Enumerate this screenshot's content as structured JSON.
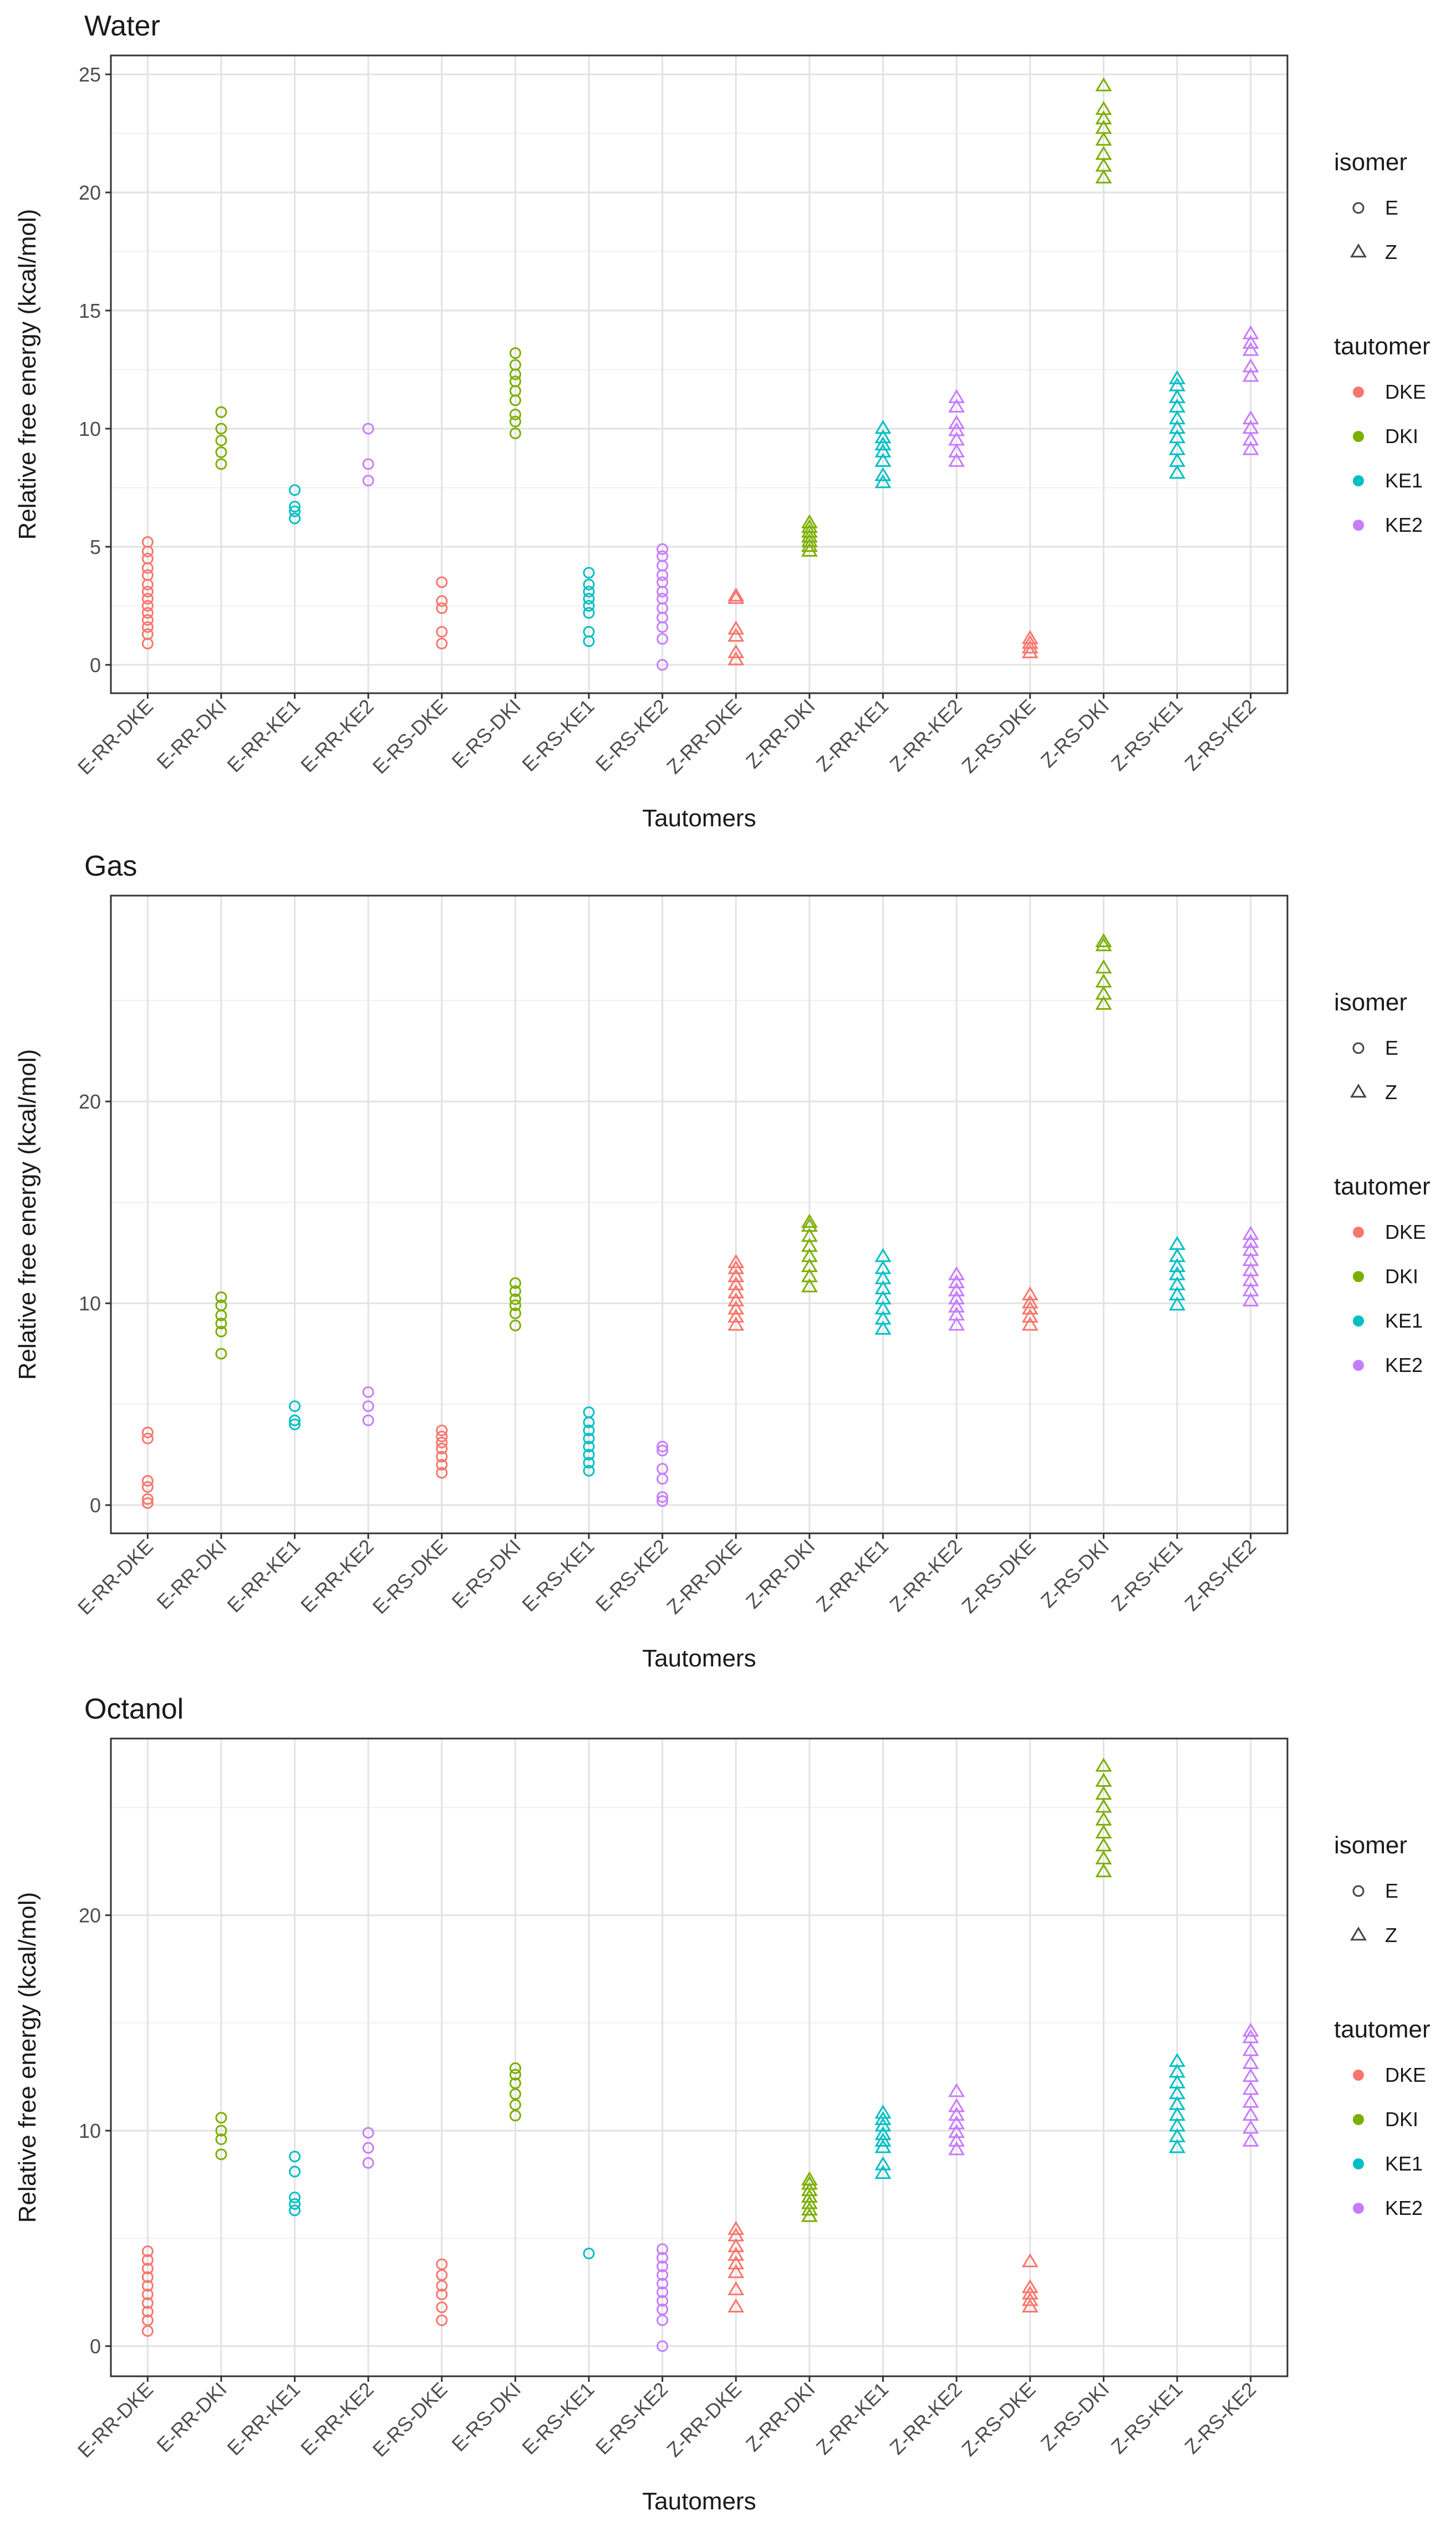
{
  "colors": {
    "isomer_E": "#444444",
    "isomer_Z": "#444444",
    "DKE": "#F8766D",
    "DKI": "#7CAE00",
    "KE1": "#00BFC4",
    "KE2": "#C77CFF"
  },
  "legend": {
    "isomer_title": "isomer",
    "isomer_items": [
      {
        "label": "E",
        "shape": "circle"
      },
      {
        "label": "Z",
        "shape": "triangle"
      }
    ],
    "tautomer_title": "tautomer",
    "tautomer_items": [
      {
        "label": "DKE",
        "color_key": "DKE"
      },
      {
        "label": "DKI",
        "color_key": "DKI"
      },
      {
        "label": "KE1",
        "color_key": "KE1"
      },
      {
        "label": "KE2",
        "color_key": "KE2"
      }
    ]
  },
  "chart_data": [
    {
      "type": "scatter",
      "title": "Water",
      "xlabel": "Tautomers",
      "ylabel": "Relative free energy (kcal/mol)",
      "ylim": [
        -1.2,
        25.8
      ],
      "yticks": [
        0,
        5,
        10,
        15,
        20,
        25
      ],
      "categories": [
        "E-RR-DKE",
        "E-RR-DKI",
        "E-RR-KE1",
        "E-RR-KE2",
        "E-RS-DKE",
        "E-RS-DKI",
        "E-RS-KE1",
        "E-RS-KE2",
        "Z-RR-DKE",
        "Z-RR-DKI",
        "Z-RR-KE1",
        "Z-RR-KE2",
        "Z-RS-DKE",
        "Z-RS-DKI",
        "Z-RS-KE1",
        "Z-RS-KE2"
      ],
      "series": [
        {
          "category": "E-RR-DKE",
          "isomer": "E",
          "tautomer": "DKE",
          "values": [
            0.9,
            1.3,
            1.6,
            1.9,
            2.2,
            2.5,
            2.8,
            3.1,
            3.4,
            3.8,
            4.1,
            4.5,
            4.8,
            5.2
          ]
        },
        {
          "category": "E-RR-DKI",
          "isomer": "E",
          "tautomer": "DKI",
          "values": [
            8.5,
            9.0,
            9.5,
            10.0,
            10.7
          ]
        },
        {
          "category": "E-RR-KE1",
          "isomer": "E",
          "tautomer": "KE1",
          "values": [
            6.2,
            6.5,
            6.7,
            7.4
          ]
        },
        {
          "category": "E-RR-KE2",
          "isomer": "E",
          "tautomer": "KE2",
          "values": [
            7.8,
            8.5,
            10.0
          ]
        },
        {
          "category": "E-RS-DKE",
          "isomer": "E",
          "tautomer": "DKE",
          "values": [
            0.9,
            1.4,
            2.4,
            2.7,
            3.5
          ]
        },
        {
          "category": "E-RS-DKI",
          "isomer": "E",
          "tautomer": "DKI",
          "values": [
            9.8,
            10.3,
            10.6,
            11.2,
            11.6,
            12.0,
            12.3,
            12.7,
            13.2
          ]
        },
        {
          "category": "E-RS-KE1",
          "isomer": "E",
          "tautomer": "KE1",
          "values": [
            1.0,
            1.4,
            2.2,
            2.5,
            2.8,
            3.1,
            3.4,
            3.9
          ]
        },
        {
          "category": "E-RS-KE2",
          "isomer": "E",
          "tautomer": "KE2",
          "values": [
            0.0,
            1.1,
            1.6,
            2.0,
            2.4,
            2.8,
            3.1,
            3.5,
            3.8,
            4.2,
            4.6,
            4.9
          ]
        },
        {
          "category": "Z-RR-DKE",
          "isomer": "Z",
          "tautomer": "DKE",
          "values": [
            0.2,
            0.5,
            1.2,
            1.5,
            2.8,
            2.9
          ]
        },
        {
          "category": "Z-RR-DKI",
          "isomer": "Z",
          "tautomer": "DKI",
          "values": [
            4.8,
            5.0,
            5.2,
            5.4,
            5.6,
            5.8,
            6.0
          ]
        },
        {
          "category": "Z-RR-KE1",
          "isomer": "Z",
          "tautomer": "KE1",
          "values": [
            7.7,
            8.0,
            8.6,
            9.0,
            9.3,
            9.6,
            10.0
          ]
        },
        {
          "category": "Z-RR-KE2",
          "isomer": "Z",
          "tautomer": "KE2",
          "values": [
            8.6,
            9.0,
            9.5,
            9.9,
            10.2,
            10.9,
            11.3
          ]
        },
        {
          "category": "Z-RS-DKE",
          "isomer": "Z",
          "tautomer": "DKE",
          "values": [
            0.5,
            0.7,
            0.9,
            1.1
          ]
        },
        {
          "category": "Z-RS-DKI",
          "isomer": "Z",
          "tautomer": "DKI",
          "values": [
            20.6,
            21.1,
            21.6,
            22.2,
            22.7,
            23.1,
            23.5,
            24.5
          ]
        },
        {
          "category": "Z-RS-KE1",
          "isomer": "Z",
          "tautomer": "KE1",
          "values": [
            8.1,
            8.6,
            9.1,
            9.6,
            10.0,
            10.4,
            10.9,
            11.3,
            11.8,
            12.1
          ]
        },
        {
          "category": "Z-RS-KE2",
          "isomer": "Z",
          "tautomer": "KE2",
          "values": [
            9.1,
            9.5,
            10.0,
            10.4,
            12.2,
            12.6,
            13.3,
            13.6,
            14.0
          ]
        }
      ]
    },
    {
      "type": "scatter",
      "title": "Gas",
      "xlabel": "Tautomers",
      "ylabel": "Relative free energy (kcal/mol)",
      "ylim": [
        -1.4,
        30.2
      ],
      "yticks": [
        0,
        10,
        20
      ],
      "categories": [
        "E-RR-DKE",
        "E-RR-DKI",
        "E-RR-KE1",
        "E-RR-KE2",
        "E-RS-DKE",
        "E-RS-DKI",
        "E-RS-KE1",
        "E-RS-KE2",
        "Z-RR-DKE",
        "Z-RR-DKI",
        "Z-RR-KE1",
        "Z-RR-KE2",
        "Z-RS-DKE",
        "Z-RS-DKI",
        "Z-RS-KE1",
        "Z-RS-KE2"
      ],
      "series": [
        {
          "category": "E-RR-DKE",
          "isomer": "E",
          "tautomer": "DKE",
          "values": [
            0.1,
            0.3,
            0.9,
            1.2,
            3.3,
            3.6
          ]
        },
        {
          "category": "E-RR-DKI",
          "isomer": "E",
          "tautomer": "DKI",
          "values": [
            7.5,
            8.6,
            9.0,
            9.4,
            9.9,
            10.3
          ]
        },
        {
          "category": "E-RR-KE1",
          "isomer": "E",
          "tautomer": "KE1",
          "values": [
            4.0,
            4.2,
            4.9
          ]
        },
        {
          "category": "E-RR-KE2",
          "isomer": "E",
          "tautomer": "KE2",
          "values": [
            4.2,
            4.9,
            5.6
          ]
        },
        {
          "category": "E-RS-DKE",
          "isomer": "E",
          "tautomer": "DKE",
          "values": [
            1.6,
            2.0,
            2.4,
            2.8,
            3.1,
            3.4,
            3.7
          ]
        },
        {
          "category": "E-RS-DKI",
          "isomer": "E",
          "tautomer": "DKI",
          "values": [
            8.9,
            9.5,
            9.9,
            10.2,
            10.6,
            11.0
          ]
        },
        {
          "category": "E-RS-KE1",
          "isomer": "E",
          "tautomer": "KE1",
          "values": [
            1.7,
            2.1,
            2.5,
            2.9,
            3.3,
            3.7,
            4.1,
            4.6
          ]
        },
        {
          "category": "E-RS-KE2",
          "isomer": "E",
          "tautomer": "KE2",
          "values": [
            0.2,
            0.4,
            1.3,
            1.8,
            2.7,
            2.9
          ]
        },
        {
          "category": "Z-RR-DKE",
          "isomer": "Z",
          "tautomer": "DKE",
          "values": [
            8.9,
            9.3,
            9.7,
            10.1,
            10.5,
            10.9,
            11.3,
            11.7,
            12.0
          ]
        },
        {
          "category": "Z-RR-DKI",
          "isomer": "Z",
          "tautomer": "DKI",
          "values": [
            10.8,
            11.3,
            11.8,
            12.3,
            12.8,
            13.3,
            13.8,
            14.0
          ]
        },
        {
          "category": "Z-RR-KE1",
          "isomer": "Z",
          "tautomer": "KE1",
          "values": [
            8.7,
            9.2,
            9.7,
            10.2,
            10.7,
            11.2,
            11.7,
            12.3
          ]
        },
        {
          "category": "Z-RR-KE2",
          "isomer": "Z",
          "tautomer": "KE2",
          "values": [
            8.9,
            9.4,
            9.8,
            10.2,
            10.6,
            11.0,
            11.4
          ]
        },
        {
          "category": "Z-RS-DKE",
          "isomer": "Z",
          "tautomer": "DKE",
          "values": [
            8.9,
            9.3,
            9.7,
            10.0,
            10.4
          ]
        },
        {
          "category": "Z-RS-DKI",
          "isomer": "Z",
          "tautomer": "DKI",
          "values": [
            24.8,
            25.3,
            25.9,
            26.6,
            27.7,
            27.9
          ]
        },
        {
          "category": "Z-RS-KE1",
          "isomer": "Z",
          "tautomer": "KE1",
          "values": [
            9.9,
            10.4,
            10.9,
            11.4,
            11.8,
            12.3,
            12.9
          ]
        },
        {
          "category": "Z-RS-KE2",
          "isomer": "Z",
          "tautomer": "KE2",
          "values": [
            10.1,
            10.6,
            11.1,
            11.6,
            12.1,
            12.6,
            13.0,
            13.4
          ]
        }
      ]
    },
    {
      "type": "scatter",
      "title": "Octanol",
      "xlabel": "Tautomers",
      "ylabel": "Relative free energy (kcal/mol)",
      "ylim": [
        -1.4,
        28.2
      ],
      "yticks": [
        0,
        10,
        20
      ],
      "categories": [
        "E-RR-DKE",
        "E-RR-DKI",
        "E-RR-KE1",
        "E-RR-KE2",
        "E-RS-DKE",
        "E-RS-DKI",
        "E-RS-KE1",
        "E-RS-KE2",
        "Z-RR-DKE",
        "Z-RR-DKI",
        "Z-RR-KE1",
        "Z-RR-KE2",
        "Z-RS-DKE",
        "Z-RS-DKI",
        "Z-RS-KE1",
        "Z-RS-KE2"
      ],
      "series": [
        {
          "category": "E-RR-DKE",
          "isomer": "E",
          "tautomer": "DKE",
          "values": [
            0.7,
            1.2,
            1.6,
            2.0,
            2.4,
            2.8,
            3.2,
            3.6,
            4.0,
            4.4
          ]
        },
        {
          "category": "E-RR-DKI",
          "isomer": "E",
          "tautomer": "DKI",
          "values": [
            8.9,
            9.6,
            10.0,
            10.6
          ]
        },
        {
          "category": "E-RR-KE1",
          "isomer": "E",
          "tautomer": "KE1",
          "values": [
            6.3,
            6.6,
            6.9,
            8.1,
            8.8
          ]
        },
        {
          "category": "E-RR-KE2",
          "isomer": "E",
          "tautomer": "KE2",
          "values": [
            8.5,
            9.2,
            9.9
          ]
        },
        {
          "category": "E-RS-DKE",
          "isomer": "E",
          "tautomer": "DKE",
          "values": [
            1.2,
            1.8,
            2.4,
            2.8,
            3.3,
            3.8
          ]
        },
        {
          "category": "E-RS-DKI",
          "isomer": "E",
          "tautomer": "DKI",
          "values": [
            10.7,
            11.2,
            11.7,
            12.2,
            12.6,
            12.9
          ]
        },
        {
          "category": "E-RS-KE1",
          "isomer": "E",
          "tautomer": "KE1",
          "values": [
            4.3
          ]
        },
        {
          "category": "E-RS-KE2",
          "isomer": "E",
          "tautomer": "KE2",
          "values": [
            0.0,
            1.2,
            1.7,
            2.1,
            2.5,
            2.9,
            3.3,
            3.7,
            4.1,
            4.5
          ]
        },
        {
          "category": "Z-RR-DKE",
          "isomer": "Z",
          "tautomer": "DKE",
          "values": [
            1.8,
            2.6,
            3.4,
            3.8,
            4.2,
            4.6,
            5.1,
            5.4
          ]
        },
        {
          "category": "Z-RR-DKI",
          "isomer": "Z",
          "tautomer": "DKI",
          "values": [
            6.0,
            6.3,
            6.6,
            6.9,
            7.2,
            7.5,
            7.7
          ]
        },
        {
          "category": "Z-RR-KE1",
          "isomer": "Z",
          "tautomer": "KE1",
          "values": [
            8.0,
            8.4,
            9.2,
            9.5,
            9.8,
            10.2,
            10.5,
            10.8
          ]
        },
        {
          "category": "Z-RR-KE2",
          "isomer": "Z",
          "tautomer": "KE2",
          "values": [
            9.1,
            9.5,
            9.9,
            10.3,
            10.7,
            11.1,
            11.8
          ]
        },
        {
          "category": "Z-RS-DKE",
          "isomer": "Z",
          "tautomer": "DKE",
          "values": [
            1.8,
            2.1,
            2.4,
            2.7,
            3.9
          ]
        },
        {
          "category": "Z-RS-DKI",
          "isomer": "Z",
          "tautomer": "DKI",
          "values": [
            22.0,
            22.6,
            23.2,
            23.8,
            24.4,
            25.0,
            25.6,
            26.2,
            26.9
          ]
        },
        {
          "category": "Z-RS-KE1",
          "isomer": "Z",
          "tautomer": "KE1",
          "values": [
            9.2,
            9.7,
            10.2,
            10.7,
            11.2,
            11.7,
            12.2,
            12.7,
            13.2
          ]
        },
        {
          "category": "Z-RS-KE2",
          "isomer": "Z",
          "tautomer": "KE2",
          "values": [
            9.5,
            10.1,
            10.7,
            11.3,
            11.9,
            12.5,
            13.1,
            13.7,
            14.3,
            14.6
          ]
        }
      ]
    }
  ]
}
